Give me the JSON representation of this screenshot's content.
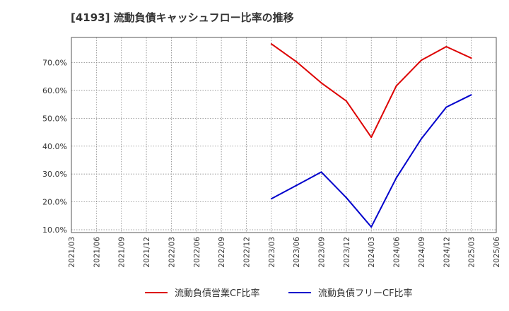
{
  "chart_data": {
    "type": "line",
    "title": "[4193]  流動負債キャッシュフロー比率の推移",
    "xlabel": "",
    "ylabel": "",
    "ylim": [
      9,
      79
    ],
    "yticks": [
      10,
      20,
      30,
      40,
      50,
      60,
      70
    ],
    "y_tick_labels": [
      "10.0%",
      "20.0%",
      "30.0%",
      "40.0%",
      "50.0%",
      "60.0%",
      "70.0%"
    ],
    "x_tick_labels": [
      "2021/03",
      "2021/06",
      "2021/09",
      "2021/12",
      "2022/03",
      "2022/06",
      "2022/09",
      "2022/12",
      "2023/03",
      "2023/06",
      "2023/09",
      "2023/12",
      "2024/03",
      "2024/06",
      "2024/09",
      "2024/12",
      "2025/03",
      "2025/06"
    ],
    "grid": true,
    "legend_position": "bottom",
    "series": [
      {
        "name": "流動負債営業CF比率",
        "color": "#dd0000",
        "x_index": [
          8,
          9,
          10,
          11,
          12,
          13,
          14,
          15,
          16
        ],
        "values": [
          76.7,
          70.3,
          62.7,
          56.2,
          43.2,
          61.6,
          70.8,
          75.7,
          71.6
        ]
      },
      {
        "name": "流動負債フリーCF比率",
        "color": "#0000cc",
        "x_index": [
          8,
          9,
          10,
          11,
          12,
          13,
          14,
          15,
          16
        ],
        "values": [
          21.1,
          25.9,
          30.7,
          21.5,
          11.0,
          28.6,
          42.6,
          54.0,
          58.4
        ]
      }
    ]
  }
}
